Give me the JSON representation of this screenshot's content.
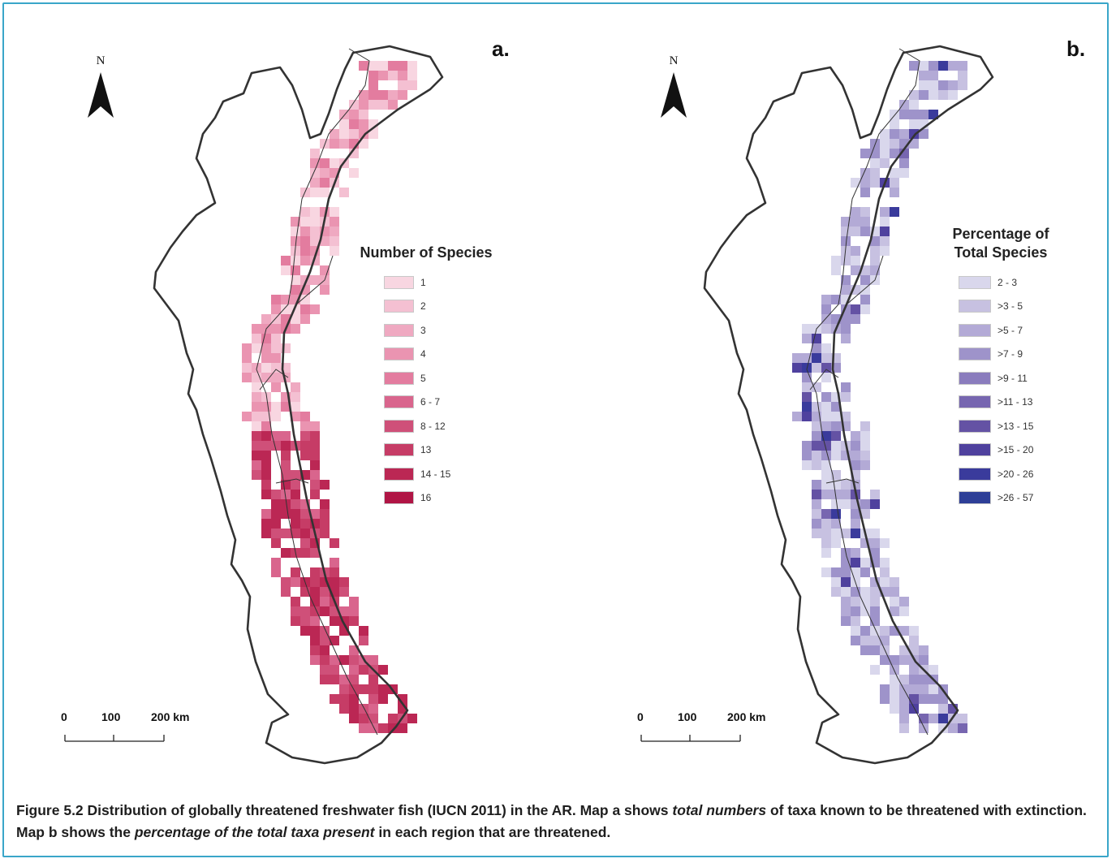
{
  "maps": [
    {
      "letter": "a.",
      "north": "N",
      "legend": {
        "title": "Number of Species",
        "items": [
          {
            "label": "1",
            "color": "#f8d6e1"
          },
          {
            "label": "2",
            "color": "#f4c0d2"
          },
          {
            "label": "3",
            "color": "#efa9c1"
          },
          {
            "label": "4",
            "color": "#ea94b1"
          },
          {
            "label": "5",
            "color": "#e37c9f"
          },
          {
            "label": "6 - 7",
            "color": "#d9658d"
          },
          {
            "label": "8 - 12",
            "color": "#cf5079"
          },
          {
            "label": "13",
            "color": "#c63c66"
          },
          {
            "label": "14 - 15",
            "color": "#bb2754"
          },
          {
            "label": "16",
            "color": "#b01545"
          }
        ]
      },
      "scale": {
        "labels": [
          "0",
          "100",
          "200 km"
        ]
      }
    },
    {
      "letter": "b.",
      "north": "N",
      "legend": {
        "title": "Percentage of Total Species",
        "items": [
          {
            "label": "2 - 3",
            "color": "#d9d7ec"
          },
          {
            "label": ">3 - 5",
            "color": "#c7c1e1"
          },
          {
            "label": ">5 - 7",
            "color": "#b3aad6"
          },
          {
            "label": ">7 - 9",
            "color": "#9e93ca"
          },
          {
            "label": ">9 - 11",
            "color": "#8a7cbd"
          },
          {
            "label": ">11 - 13",
            "color": "#7766b0"
          },
          {
            "label": ">13 - 15",
            "color": "#6452a4"
          },
          {
            "label": ">15 - 20",
            "color": "#4f419e"
          },
          {
            "label": ">20 - 26",
            "color": "#3a3b9c"
          },
          {
            "label": ">26 - 57",
            "color": "#2e3f97"
          }
        ]
      },
      "scale": {
        "labels": [
          "0",
          "100",
          "200 km"
        ]
      }
    }
  ],
  "caption": {
    "part1": "Figure 5.2 Distribution of globally threatened freshwater fish (IUCN 2011) in the AR. Map a shows ",
    "em1": "total numbers",
    "part2": " of taxa known to be threatened with extinction. Map b shows the ",
    "em2": "percentage of the total taxa present",
    "part3": " in each region that are threatened."
  }
}
